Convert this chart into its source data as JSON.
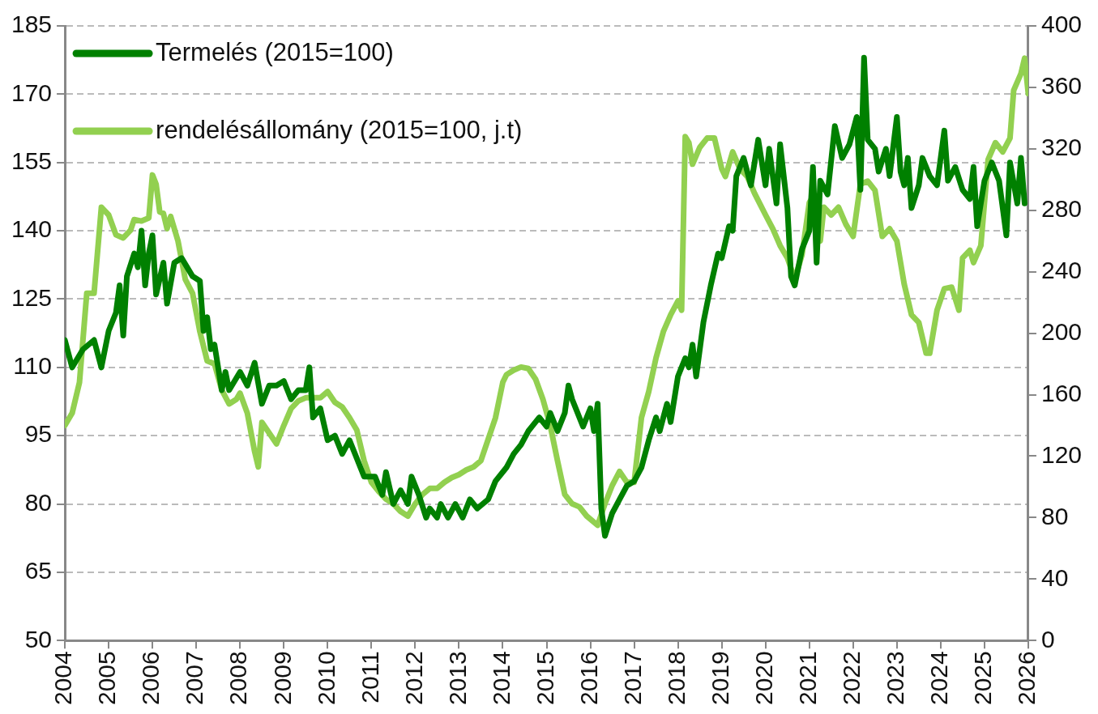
{
  "chart_data": {
    "type": "line",
    "x": [
      "2004-01",
      "2004-03",
      "2004-06",
      "2004-09",
      "2004-11",
      "2005-01",
      "2005-03",
      "2005-04",
      "2005-05",
      "2005-06",
      "2005-08",
      "2005-09",
      "2005-10",
      "2005-11",
      "2005-12",
      "2006-01",
      "2006-02",
      "2006-04",
      "2006-05",
      "2006-07",
      "2006-09",
      "2006-12",
      "2007-02",
      "2007-03",
      "2007-04",
      "2007-05",
      "2007-06",
      "2007-08",
      "2007-09",
      "2007-10",
      "2008-01",
      "2008-03",
      "2008-05",
      "2008-07",
      "2008-09",
      "2008-11",
      "2009-01",
      "2009-03",
      "2009-05",
      "2009-07",
      "2009-08",
      "2009-09",
      "2009-11",
      "2010-01",
      "2010-03",
      "2010-05",
      "2010-07",
      "2010-09",
      "2010-11",
      "2011-02",
      "2011-04",
      "2011-05",
      "2011-07",
      "2011-09",
      "2011-11",
      "2011-12",
      "2012-02",
      "2012-04",
      "2012-05",
      "2012-07",
      "2012-08",
      "2012-10",
      "2012-12",
      "2013-02",
      "2013-04",
      "2013-06",
      "2013-09",
      "2013-11",
      "2014-02",
      "2014-04",
      "2014-06",
      "2014-08",
      "2014-09",
      "2014-11",
      "2015-01",
      "2015-02",
      "2015-04",
      "2015-06",
      "2015-07",
      "2015-08",
      "2015-10",
      "2015-11",
      "2016-01",
      "2016-02",
      "2016-03",
      "2016-04",
      "2016-05",
      "2016-07",
      "2016-09",
      "2016-11",
      "2017-01",
      "2017-03",
      "2017-05",
      "2017-07",
      "2017-08",
      "2017-10",
      "2017-11",
      "2018-01",
      "2018-03",
      "2018-04",
      "2018-05",
      "2018-06",
      "2018-08",
      "2018-10",
      "2018-12",
      "2019-01",
      "2019-03",
      "2019-04",
      "2019-05",
      "2019-07",
      "2019-09",
      "2019-11",
      "2020-01",
      "2020-02",
      "2020-04",
      "2020-05",
      "2020-07",
      "2020-08",
      "2020-09",
      "2020-11",
      "2021-01",
      "2021-02",
      "2021-03",
      "2021-04",
      "2021-06",
      "2021-08",
      "2021-10",
      "2021-12",
      "2022-02",
      "2022-03",
      "2022-04",
      "2022-05",
      "2022-07",
      "2022-08",
      "2022-10",
      "2022-11",
      "2023-01",
      "2023-02",
      "2023-03",
      "2023-04",
      "2023-05",
      "2023-07",
      "2023-08",
      "2023-10",
      "2023-12",
      "2024-02",
      "2024-03",
      "2024-05",
      "2024-07",
      "2024-09",
      "2024-10",
      "2024-11",
      "2025-01",
      "2025-03",
      "2025-05",
      "2025-07",
      "2025-08",
      "2025-10",
      "2025-11",
      "2025-12"
    ],
    "xlim": [
      "2004-01",
      "2026-01"
    ],
    "xticks": [
      "2004",
      "2005",
      "2006",
      "2007",
      "2008",
      "2009",
      "2010",
      "2011",
      "2012",
      "2013",
      "2014",
      "2015",
      "2016",
      "2017",
      "2018",
      "2019",
      "2020",
      "2021",
      "2022",
      "2023",
      "2024",
      "2025",
      "2026"
    ],
    "ylim": [
      50,
      185
    ],
    "yticks": [
      50,
      65,
      80,
      95,
      110,
      125,
      140,
      155,
      170,
      185
    ],
    "y2lim": [
      0,
      400
    ],
    "y2ticks": [
      0,
      40,
      80,
      120,
      160,
      200,
      240,
      280,
      320,
      360,
      400
    ],
    "grid": "y",
    "legend": "top left",
    "series": [
      {
        "name": "Termelés (2015=100)",
        "color": "#008000",
        "values": [
          116,
          110,
          114,
          116,
          110,
          118,
          122,
          128,
          117,
          130,
          135,
          132,
          140,
          128,
          135,
          139,
          126,
          133,
          124,
          133,
          134,
          130,
          129,
          118,
          121,
          114,
          115,
          105,
          109,
          105,
          109,
          106,
          111,
          102,
          106,
          106,
          107,
          103,
          105,
          105,
          110,
          99,
          101,
          94,
          95,
          91,
          94,
          90,
          86,
          86,
          82,
          87,
          80,
          83,
          80,
          86,
          82,
          77,
          79,
          77,
          80,
          77,
          80,
          77,
          81,
          79,
          81,
          85,
          88,
          91,
          93,
          96,
          97,
          99,
          97,
          100,
          96,
          100,
          106,
          103,
          99,
          97,
          101,
          96,
          102,
          79,
          73,
          78,
          81,
          84,
          85,
          88,
          94,
          99,
          96,
          102,
          98,
          108,
          112,
          110,
          115,
          108,
          120,
          128,
          135,
          134,
          141,
          140,
          152,
          156,
          150,
          160,
          150,
          158,
          146,
          159,
          145,
          130,
          128,
          136,
          140,
          154,
          133,
          151,
          148,
          163,
          156,
          159,
          165,
          149,
          178,
          160,
          158,
          153,
          158,
          152,
          165,
          153,
          150,
          156,
          145,
          150,
          156,
          152,
          150,
          162,
          151,
          154,
          149,
          147,
          154,
          141,
          151,
          155,
          151,
          139,
          155,
          146,
          156,
          146
        ]
      },
      {
        "name": "rendelésállomány (2015=100, j.t)",
        "color": "#92d050",
        "axis": "y2",
        "x": [
          "2004-01",
          "2004-03",
          "2004-05",
          "2004-07",
          "2004-09",
          "2004-11",
          "2005-01",
          "2005-03",
          "2005-05",
          "2005-07",
          "2005-08",
          "2005-10",
          "2005-12",
          "2006-01",
          "2006-02",
          "2006-03",
          "2006-04",
          "2006-05",
          "2006-06",
          "2006-08",
          "2006-10",
          "2006-12",
          "2007-02",
          "2007-04",
          "2007-06",
          "2007-08",
          "2007-10",
          "2007-12",
          "2008-01",
          "2008-03",
          "2008-05",
          "2008-06",
          "2008-07",
          "2008-09",
          "2008-11",
          "2009-01",
          "2009-03",
          "2009-05",
          "2009-07",
          "2009-09",
          "2009-11",
          "2010-01",
          "2010-03",
          "2010-05",
          "2010-07",
          "2010-09",
          "2010-11",
          "2011-01",
          "2011-03",
          "2011-05",
          "2011-07",
          "2011-09",
          "2011-11",
          "2012-01",
          "2012-03",
          "2012-05",
          "2012-07",
          "2012-09",
          "2012-11",
          "2013-01",
          "2013-03",
          "2013-05",
          "2013-07",
          "2013-09",
          "2013-11",
          "2014-01",
          "2014-02",
          "2014-04",
          "2014-06",
          "2014-08",
          "2014-10",
          "2014-12",
          "2015-02",
          "2015-04",
          "2015-06",
          "2015-08",
          "2015-10",
          "2015-12",
          "2016-03",
          "2016-05",
          "2016-07",
          "2016-09",
          "2016-11",
          "2017-01",
          "2017-03",
          "2017-05",
          "2017-07",
          "2017-09",
          "2017-11",
          "2018-01",
          "2018-02",
          "2018-03",
          "2018-04",
          "2018-05",
          "2018-07",
          "2018-09",
          "2018-11",
          "2019-01",
          "2019-02",
          "2019-04",
          "2019-06",
          "2019-08",
          "2019-10",
          "2020-01",
          "2020-03",
          "2020-05",
          "2020-07",
          "2020-09",
          "2020-11",
          "2021-01",
          "2021-02",
          "2021-04",
          "2021-05",
          "2021-07",
          "2021-09",
          "2021-11",
          "2022-01",
          "2022-03",
          "2022-05",
          "2022-07",
          "2022-09",
          "2022-11",
          "2023-01",
          "2023-03",
          "2023-05",
          "2023-07",
          "2023-09",
          "2023-10",
          "2023-12",
          "2024-02",
          "2024-04",
          "2024-06",
          "2024-07",
          "2024-09",
          "2024-10",
          "2024-12",
          "2025-02",
          "2025-04",
          "2025-06",
          "2025-08",
          "2025-09",
          "2025-11",
          "2025-12",
          "2026-01"
        ],
        "values": [
          140,
          148,
          168,
          226,
          226,
          282,
          277,
          264,
          262,
          267,
          274,
          273,
          275,
          303,
          297,
          279,
          278,
          268,
          276,
          260,
          235,
          226,
          201,
          182,
          180,
          163,
          154,
          157,
          161,
          148,
          123,
          113,
          142,
          135,
          128,
          140,
          151,
          156,
          158,
          158,
          158,
          162,
          155,
          152,
          145,
          137,
          117,
          103,
          97,
          92,
          89,
          84,
          81,
          89,
          95,
          99,
          99,
          103,
          106,
          108,
          111,
          113,
          117,
          131,
          145,
          168,
          173,
          176,
          178,
          177,
          170,
          157,
          140,
          117,
          95,
          89,
          87,
          81,
          75,
          89,
          101,
          110,
          103,
          103,
          145,
          162,
          184,
          201,
          212,
          221,
          215,
          328,
          324,
          310,
          321,
          327,
          327,
          307,
          302,
          318,
          307,
          302,
          291,
          277,
          268,
          257,
          249,
          235,
          251,
          285,
          289,
          260,
          282,
          277,
          282,
          271,
          263,
          297,
          299,
          293,
          263,
          268,
          260,
          232,
          212,
          207,
          187,
          187,
          215,
          229,
          230,
          215,
          249,
          254,
          246,
          257,
          313,
          324,
          318,
          327,
          358,
          369,
          379,
          356
        ]
      }
    ]
  }
}
